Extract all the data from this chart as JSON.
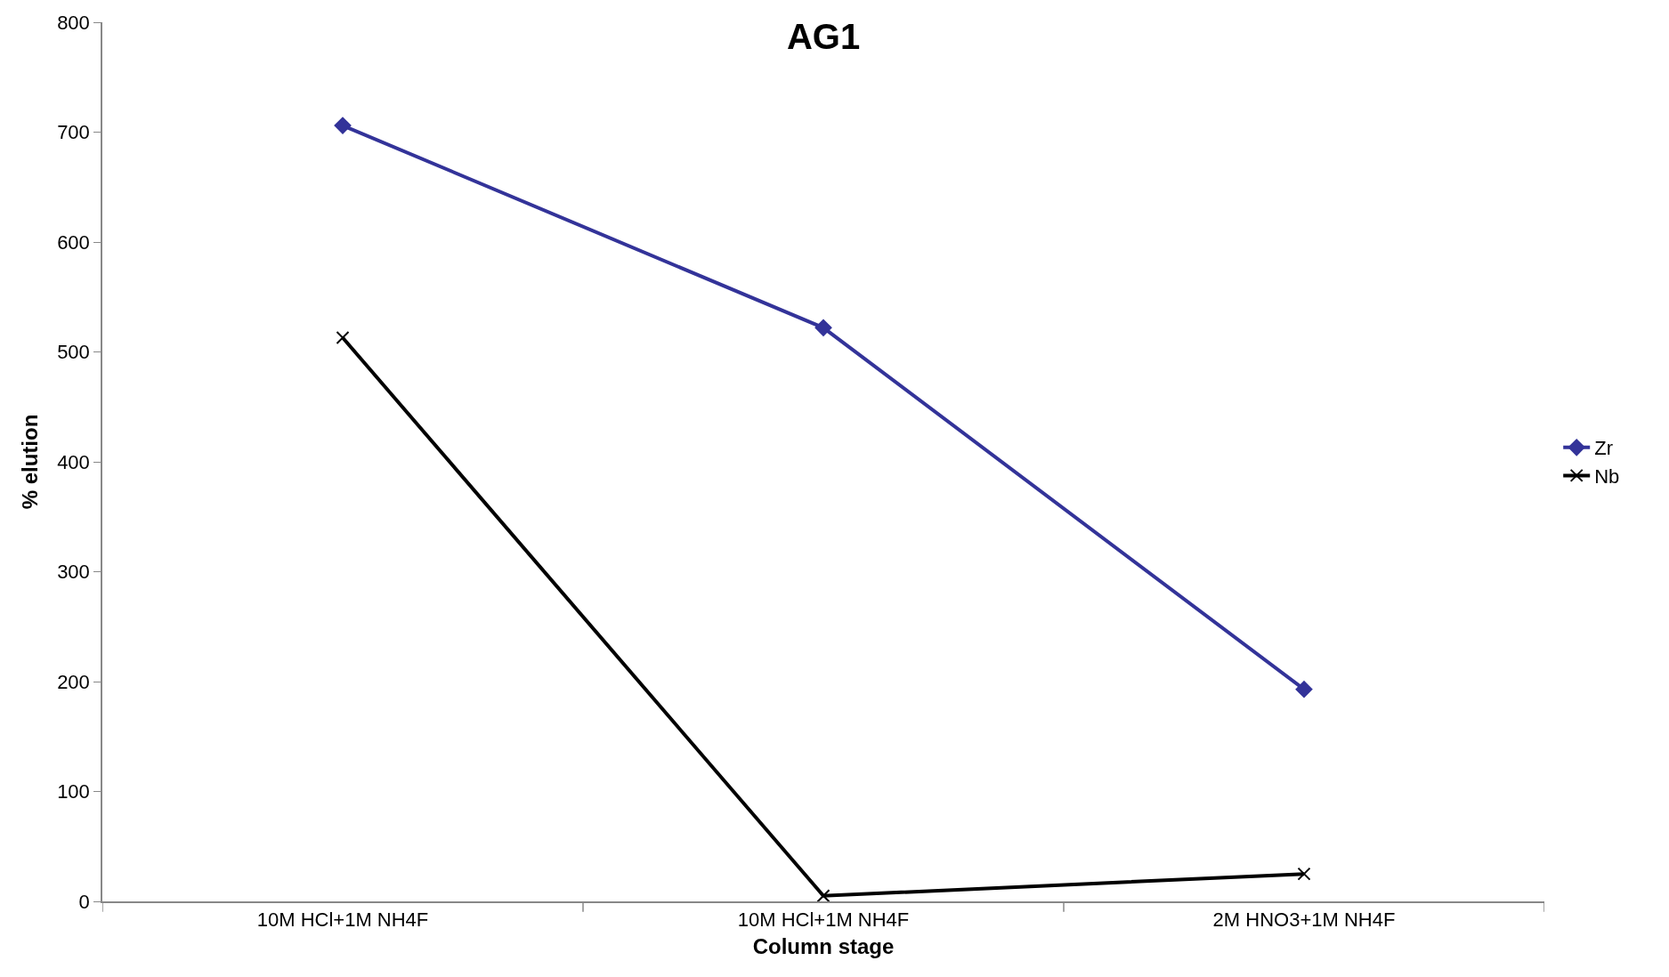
{
  "chart_data": {
    "type": "line",
    "title": "AG1",
    "xlabel": "Column stage",
    "ylabel": "% elution",
    "categories": [
      "10M HCl+1M NH4F",
      "10M HCl+1M NH4F",
      "2M HNO3+1M NH4F"
    ],
    "series": [
      {
        "name": "Zr",
        "color": "#333399",
        "marker": "diamond",
        "values": [
          706,
          522,
          193
        ]
      },
      {
        "name": "Nb",
        "color": "#000000",
        "marker": "cross",
        "values": [
          513,
          5,
          25
        ]
      }
    ],
    "ylim": [
      0,
      800
    ],
    "yticks": [
      0,
      100,
      200,
      300,
      400,
      500,
      600,
      700,
      800
    ],
    "legend": "right",
    "line_style": "solid"
  }
}
